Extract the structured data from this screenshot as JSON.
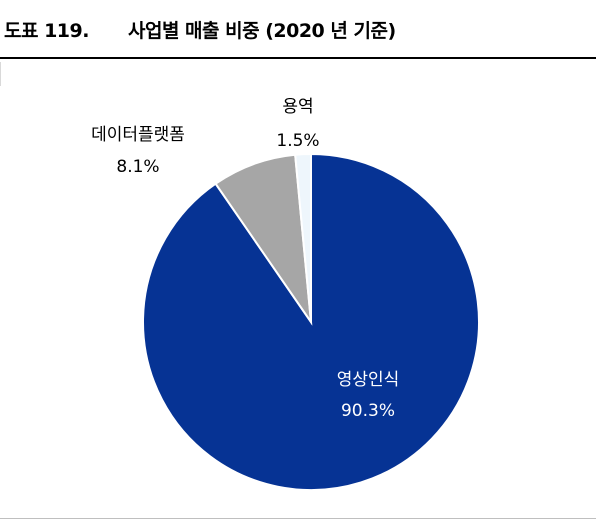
{
  "header": {
    "figure_number": "도표 119.",
    "title": "사업별 매출 비중 (2020 년 기준)"
  },
  "chart_data": {
    "type": "pie",
    "title": "사업별 매출 비중 (2020 년 기준)",
    "slices": [
      {
        "label": "영상인식",
        "value": 90.3,
        "value_label": "90.3%",
        "color": "#063394"
      },
      {
        "label": "데이터플랫폼",
        "value": 8.1,
        "value_label": "8.1%",
        "color": "#a6a6a6"
      },
      {
        "label": "용역",
        "value": 1.5,
        "value_label": "1.5%",
        "color": "#eef6fc"
      }
    ],
    "start": "12 o'clock",
    "direction": "clockwise",
    "legend": "none",
    "slice_border_color": "#ffffff"
  }
}
